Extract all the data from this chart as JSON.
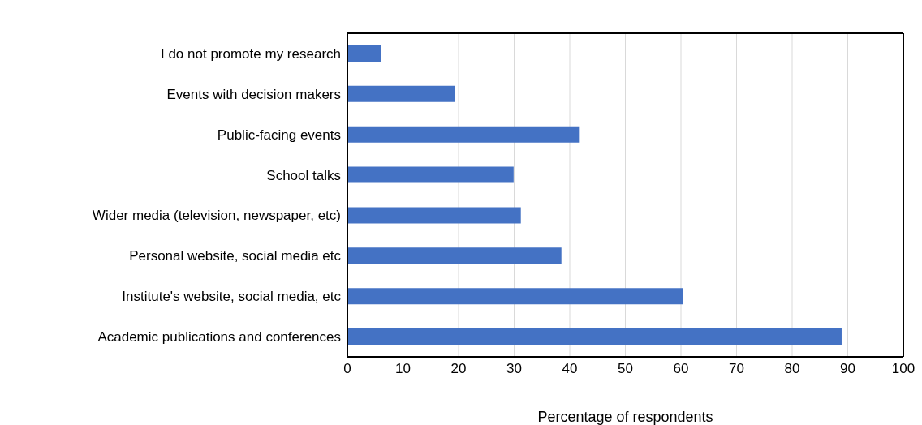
{
  "chart_data": {
    "type": "bar",
    "orientation": "horizontal",
    "categories": [
      "I do not promote my research",
      "Events with decision makers",
      "Public-facing events",
      "School talks",
      "Wider media (television, newspaper, etc)",
      "Personal website, social media etc",
      "Institute's website, social media, etc",
      "Academic publications and conferences"
    ],
    "values": [
      6,
      19.4,
      41.8,
      29.9,
      31.2,
      38.5,
      60.3,
      88.9
    ],
    "color": "#4472c4",
    "xlim": [
      0,
      100
    ],
    "xticks": [
      0,
      10,
      20,
      30,
      40,
      50,
      60,
      70,
      80,
      90,
      100
    ],
    "xlabel": "Percentage of respondents",
    "grid": "x"
  }
}
